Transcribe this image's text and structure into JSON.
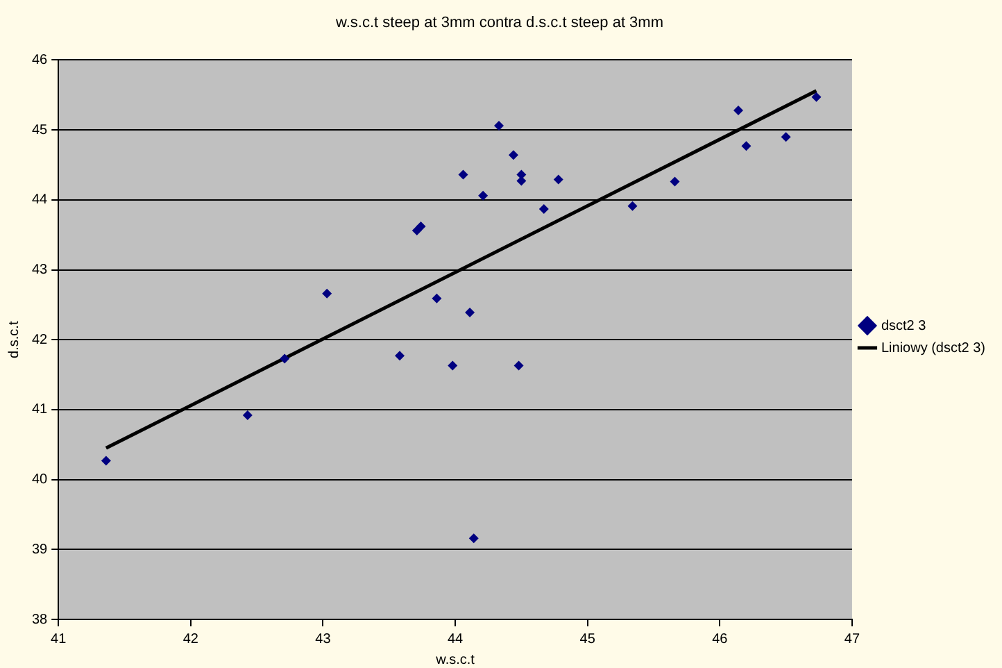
{
  "chart_data": {
    "type": "scatter",
    "title": "w.s.c.t steep at 3mm contra d.s.c.t steep at 3mm",
    "xlabel": "w.s.c.t",
    "ylabel": "d.s.c.t",
    "xlim": [
      41,
      47
    ],
    "xticks": [
      41,
      42,
      43,
      44,
      45,
      46,
      47
    ],
    "ylim": [
      38,
      46
    ],
    "yticks": [
      38,
      39,
      40,
      41,
      42,
      43,
      44,
      45,
      46
    ],
    "grid": "y",
    "legend": "right",
    "marker": "diamond",
    "series": [
      {
        "name": "dsct2 3",
        "color": "#000080",
        "x": [
          41.36,
          42.43,
          42.71,
          43.03,
          43.58,
          43.71,
          43.74,
          43.86,
          43.98,
          44.06,
          44.11,
          44.14,
          44.21,
          44.33,
          44.44,
          44.48,
          44.5,
          44.5,
          44.67,
          44.78,
          45.34,
          45.66,
          46.14,
          46.2,
          46.5,
          46.73
        ],
        "values": [
          40.27,
          40.92,
          41.73,
          42.66,
          41.77,
          43.56,
          43.62,
          42.59,
          41.63,
          44.36,
          42.39,
          39.16,
          44.06,
          45.06,
          44.64,
          41.63,
          44.36,
          44.27,
          43.87,
          44.29,
          43.91,
          44.26,
          45.28,
          44.77,
          44.9,
          45.47
        ]
      },
      {
        "name": "Liniowy (dsct2 3)",
        "type": "line",
        "color": "#000000",
        "marker": "none",
        "x": [
          41.36,
          46.73
        ],
        "values": [
          40.45,
          45.56
        ]
      }
    ]
  }
}
